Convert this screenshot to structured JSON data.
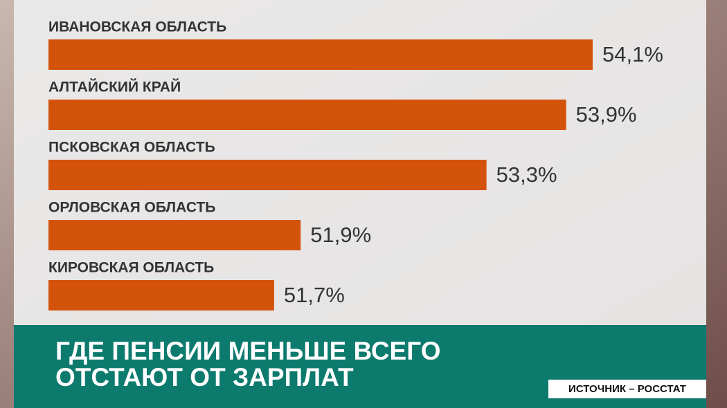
{
  "chart_data": {
    "type": "bar",
    "orientation": "horizontal",
    "title": [
      "ГДЕ ПЕНСИИ МЕНЬШЕ ВСЕГО",
      "ОТСТАЮТ ОТ ЗАРПЛАТ"
    ],
    "source": "ИСТОЧНИК – РОССТАТ",
    "categories": [
      "ИВАНОВСКАЯ ОБЛАСТЬ",
      "АЛТАЙСКИЙ КРАЙ",
      "ПСКОВСКАЯ ОБЛАСТЬ",
      "ОРЛОВСКАЯ ОБЛАСТЬ",
      "КИРОВСКАЯ ОБЛАСТЬ"
    ],
    "values": [
      54.1,
      53.9,
      53.3,
      51.9,
      51.7
    ],
    "value_labels": [
      "54,1%",
      "53,9%",
      "53,3%",
      "51,9%",
      "51,7%"
    ],
    "color": "#d4530a"
  }
}
